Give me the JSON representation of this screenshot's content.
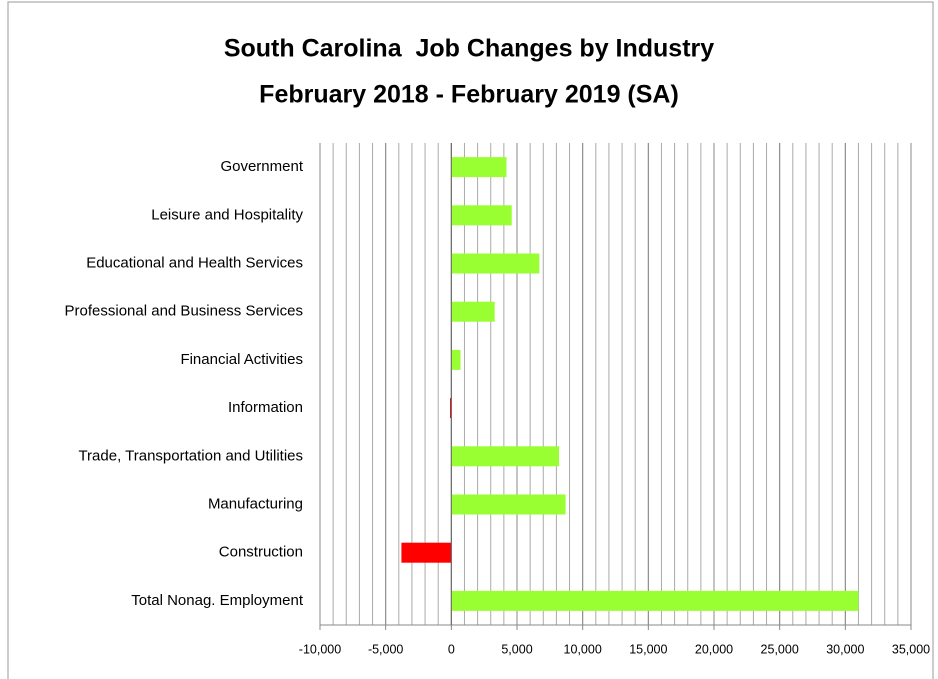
{
  "chart_data": {
    "type": "hbar",
    "title": "South Carolina  Job Changes by Industry",
    "subtitle": "February 2018 - February 2019 (SA)",
    "categories": [
      "Government",
      "Leisure and Hospitality",
      "Educational and Health Services",
      "Professional and Business Services",
      "Financial Activities",
      "Information",
      "Trade, Transportation and Utilities",
      "Manufacturing",
      "Construction",
      "Total Nonag. Employment"
    ],
    "values": [
      4200,
      4600,
      6700,
      3300,
      700,
      -100,
      8200,
      8700,
      -3800,
      31000
    ],
    "colors": [
      "#99ff33",
      "#99ff33",
      "#99ff33",
      "#99ff33",
      "#99ff33",
      "#ff0000",
      "#99ff33",
      "#99ff33",
      "#ff0000",
      "#99ff33"
    ],
    "xlim": [
      -10000,
      35000
    ],
    "xticks": [
      {
        "value": -10000,
        "label": "-10,000"
      },
      {
        "value": -5000,
        "label": "-5,000"
      },
      0,
      {
        "value": 5000,
        "label": "5,000"
      },
      {
        "value": 10000,
        "label": "10,000"
      },
      {
        "value": 15000,
        "label": "15,000"
      },
      {
        "value": 20000,
        "label": "20,000"
      },
      {
        "value": 25000,
        "label": "25,000"
      },
      {
        "value": 30000,
        "label": "30,000"
      },
      {
        "value": 35000,
        "label": "35,000"
      }
    ],
    "grid": true,
    "grid_step": 1000
  }
}
